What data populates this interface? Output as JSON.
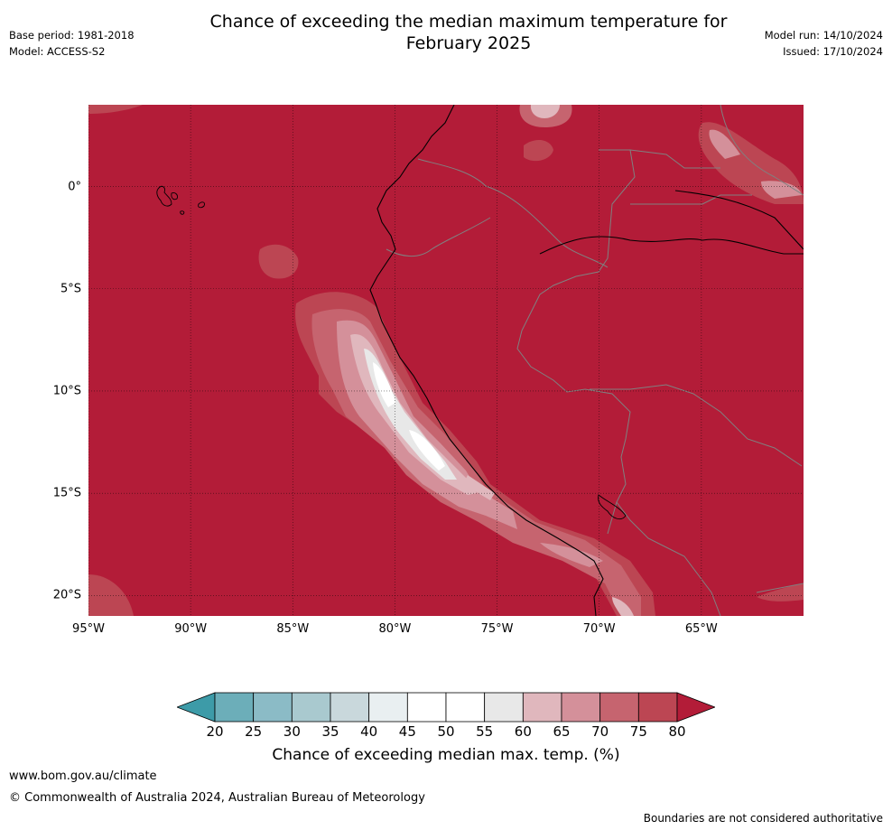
{
  "header": {
    "title_line1": "Chance of exceeding the median maximum temperature for",
    "title_line2": "February 2025",
    "base_period": "Base period: 1981-2018",
    "model": "Model: ACCESS-S2",
    "model_run": "Model run: 14/10/2024",
    "issued": "Issued: 17/10/2024"
  },
  "map": {
    "extent": {
      "lon_min": -95,
      "lon_max": -60,
      "lat_min": -21,
      "lat_max": 4
    },
    "lat_ticks": [
      {
        "value": 0,
        "label": "0°"
      },
      {
        "value": -5,
        "label": "5°S"
      },
      {
        "value": -10,
        "label": "10°S"
      },
      {
        "value": -15,
        "label": "15°S"
      },
      {
        "value": -20,
        "label": "20°S"
      }
    ],
    "lon_ticks": [
      {
        "value": -95,
        "label": "95°W"
      },
      {
        "value": -90,
        "label": "90°W"
      },
      {
        "value": -85,
        "label": "85°W"
      },
      {
        "value": -80,
        "label": "80°W"
      },
      {
        "value": -75,
        "label": "75°W"
      },
      {
        "value": -70,
        "label": "70°W"
      },
      {
        "value": -65,
        "label": "65°W"
      }
    ],
    "background_color": "#b31c38",
    "coast_color": "#000000",
    "border_color": "#808080",
    "grid": true
  },
  "colorbar": {
    "title": "Chance of exceeding median max. temp. (%)",
    "labels": [
      "20",
      "25",
      "30",
      "35",
      "40",
      "45",
      "50",
      "55",
      "60",
      "65",
      "70",
      "75",
      "80"
    ],
    "under_color": "#3d9ba8",
    "over_color": "#b31c38",
    "colors": [
      "#6caeb9",
      "#8bbbc6",
      "#a9c9cf",
      "#c9d8dc",
      "#e9eff1",
      "#ffffff",
      "#ffffff",
      "#e8e8e8",
      "#e0b7bd",
      "#d4909a",
      "#c6646f",
      "#bc4653"
    ]
  },
  "footer": {
    "url": "www.bom.gov.au/climate",
    "copyright": "© Commonwealth of Australia 2024, Australian Bureau of Meteorology",
    "disclaimer": "Boundaries are not considered authoritative"
  }
}
